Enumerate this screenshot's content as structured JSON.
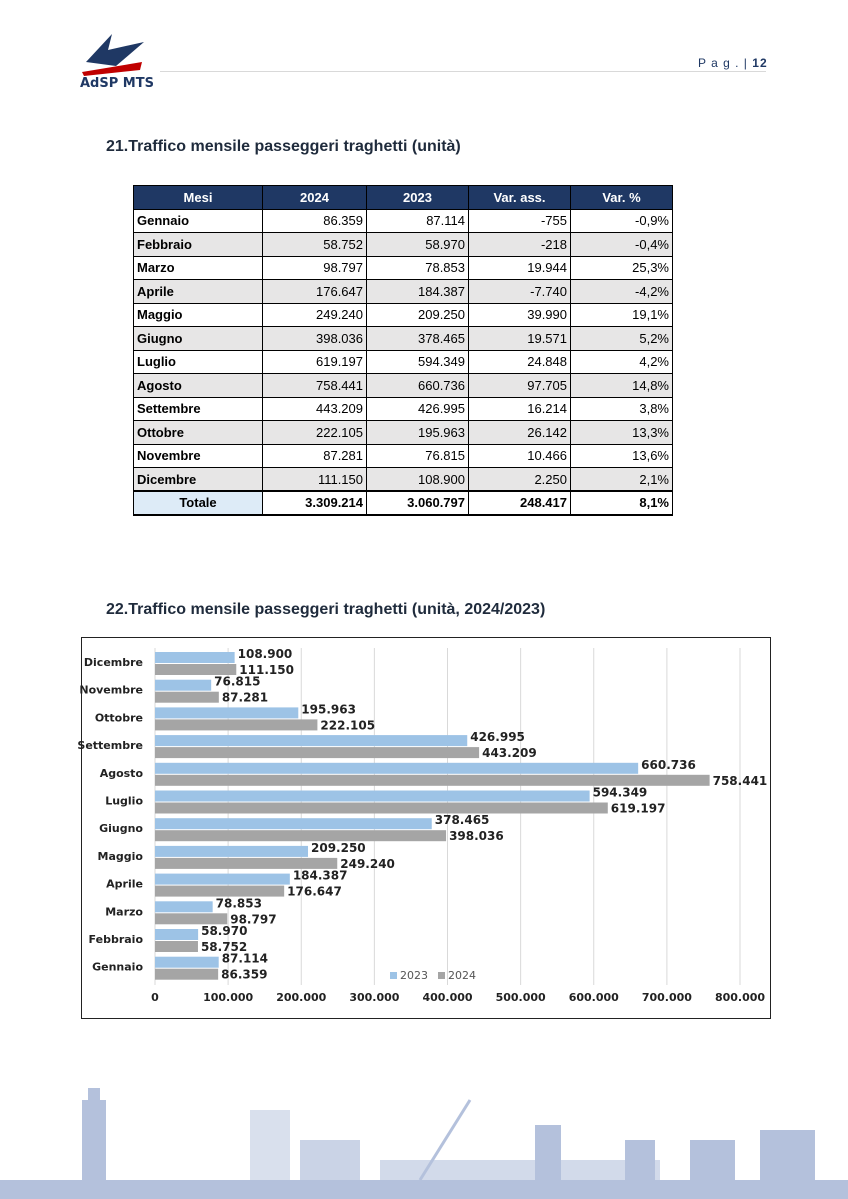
{
  "header": {
    "logo": "AdSP MTS",
    "page_label": "P a g .  |",
    "page_number": "12"
  },
  "table_section": {
    "title": "21.Traffico mensile passeggeri traghetti (unità)"
  },
  "table": {
    "columns": [
      "Mesi",
      "2024",
      "2023",
      "Var. ass.",
      "Var. %"
    ],
    "rows": [
      [
        "Gennaio",
        "86.359",
        "87.114",
        "-755",
        "-0,9%"
      ],
      [
        "Febbraio",
        "58.752",
        "58.970",
        "-218",
        "-0,4%"
      ],
      [
        "Marzo",
        "98.797",
        "78.853",
        "19.944",
        "25,3%"
      ],
      [
        "Aprile",
        "176.647",
        "184.387",
        "-7.740",
        "-4,2%"
      ],
      [
        "Maggio",
        "249.240",
        "209.250",
        "39.990",
        "19,1%"
      ],
      [
        "Giugno",
        "398.036",
        "378.465",
        "19.571",
        "5,2%"
      ],
      [
        "Luglio",
        "619.197",
        "594.349",
        "24.848",
        "4,2%"
      ],
      [
        "Agosto",
        "758.441",
        "660.736",
        "97.705",
        "14,8%"
      ],
      [
        "Settembre",
        "443.209",
        "426.995",
        "16.214",
        "3,8%"
      ],
      [
        "Ottobre",
        "222.105",
        "195.963",
        "26.142",
        "13,3%"
      ],
      [
        "Novembre",
        "87.281",
        "76.815",
        "10.466",
        "13,6%"
      ],
      [
        "Dicembre",
        "111.150",
        "108.900",
        "2.250",
        "2,1%"
      ]
    ],
    "total": [
      "Totale",
      "3.309.214",
      "3.060.797",
      "248.417",
      "8,1%"
    ]
  },
  "chart_section": {
    "title": "22.Traffico mensile passeggeri traghetti (unità, 2024/2023)"
  },
  "chart_data": {
    "type": "hbar",
    "categories": [
      "Gennaio",
      "Febbraio",
      "Marzo",
      "Aprile",
      "Maggio",
      "Giugno",
      "Luglio",
      "Agosto",
      "Settembre",
      "Ottobre",
      "Novembre",
      "Dicembre"
    ],
    "series": [
      {
        "name": "2023",
        "color": "#9dc3e6",
        "values": [
          87114,
          58970,
          78853,
          184387,
          209250,
          378465,
          594349,
          660736,
          426995,
          195963,
          76815,
          108900
        ],
        "value_labels": [
          "87.114",
          "58.970",
          "78.853",
          "184.387",
          "209.250",
          "378.465",
          "594.349",
          "660.736",
          "426.995",
          "195.963",
          "76.815",
          "108.900"
        ]
      },
      {
        "name": "2024",
        "color": "#a5a5a5",
        "values": [
          86359,
          58752,
          98797,
          176647,
          249240,
          398036,
          619197,
          758441,
          443209,
          222105,
          87281,
          111150
        ],
        "value_labels": [
          "86.359",
          "58.752",
          "98.797",
          "176.647",
          "249.240",
          "398.036",
          "619.197",
          "758.441",
          "443.209",
          "222.105",
          "87.281",
          "111.150"
        ]
      }
    ],
    "xlim": [
      0,
      800000
    ],
    "xticks": [
      0,
      {
        "value": 100000,
        "label": "100.000"
      },
      {
        "value": 200000,
        "label": "200.000"
      },
      {
        "value": 300000,
        "label": "300.000"
      },
      {
        "value": 400000,
        "label": "400.000"
      },
      {
        "value": 500000,
        "label": "500.000"
      },
      {
        "value": 600000,
        "label": "600.000"
      },
      {
        "value": 700000,
        "label": "700.000"
      },
      {
        "value": 800000,
        "label": "800.000"
      }
    ],
    "grid": true
  }
}
